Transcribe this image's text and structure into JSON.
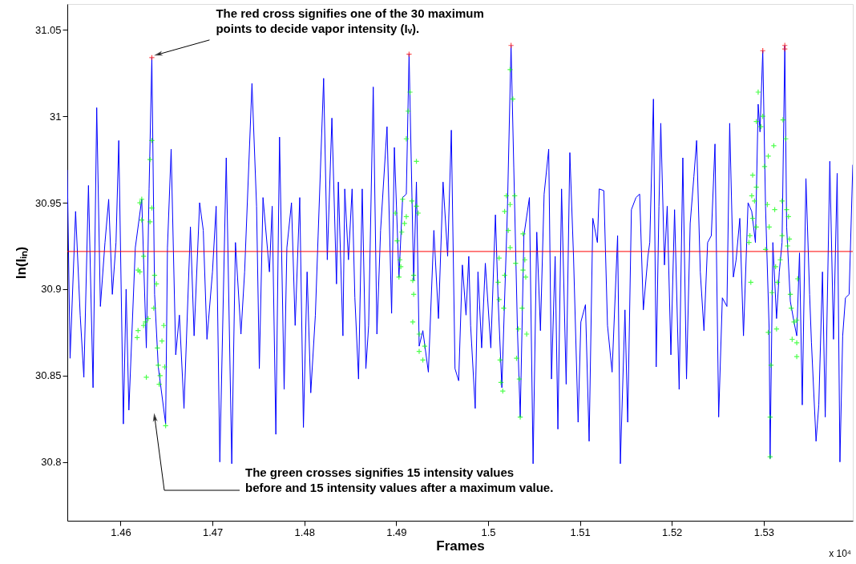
{
  "chart_data": {
    "type": "line",
    "xlabel": "Frames",
    "ylabel": "ln(Iᵢₙ)",
    "xlim": [
      1.4542,
      1.5397
    ],
    "ylim": [
      30.766,
      31.065
    ],
    "xticks": [
      1.46,
      1.47,
      1.48,
      1.49,
      1.5,
      1.51,
      1.52,
      1.53
    ],
    "yticks": [
      30.8,
      30.85,
      30.9,
      30.95,
      31,
      31.05
    ],
    "grid": false,
    "series": [
      {
        "type": "line",
        "color": "#0000ff",
        "marker": "none",
        "line_style": "solid",
        "x": [
          1.4542,
          1.4545,
          1.4551,
          1.4556,
          1.456,
          1.4565,
          1.457,
          1.4574,
          1.4578,
          1.4583,
          1.4587,
          1.4591,
          1.4595,
          1.4598,
          1.4603,
          1.4606,
          1.4609,
          1.4616,
          1.4623,
          1.4628,
          1.4631,
          1.4634,
          1.4637,
          1.4641,
          1.4649,
          1.4651,
          1.4655,
          1.466,
          1.4664,
          1.4669,
          1.4676,
          1.468,
          1.4686,
          1.469,
          1.4694,
          1.47,
          1.4704,
          1.4708,
          1.4715,
          1.4721,
          1.4725,
          1.4731,
          1.4735,
          1.4743,
          1.4748,
          1.4751,
          1.4755,
          1.4762,
          1.4765,
          1.4769,
          1.4773,
          1.4778,
          1.4781,
          1.4786,
          1.479,
          1.4795,
          1.4799,
          1.4803,
          1.4807,
          1.4812,
          1.4815,
          1.4821,
          1.4825,
          1.483,
          1.4835,
          1.4837,
          1.4842,
          1.4844,
          1.4848,
          1.4852,
          1.4855,
          1.4859,
          1.4863,
          1.4867,
          1.487,
          1.4875,
          1.4879,
          1.4883,
          1.489,
          1.4895,
          1.4898,
          1.4903,
          1.4907,
          1.4911,
          1.4914,
          1.4919,
          1.4922,
          1.4925,
          1.4929,
          1.4935,
          1.4941,
          1.4946,
          1.4951,
          1.4956,
          1.496,
          1.4964,
          1.4968,
          1.4972,
          1.4976,
          1.4979,
          1.4981,
          1.4986,
          1.4989,
          1.4993,
          1.4997,
          1.5003,
          1.5008,
          1.5011,
          1.5015,
          1.5021,
          1.5025,
          1.5028,
          1.5032,
          1.5035,
          1.5039,
          1.5045,
          1.5049,
          1.5053,
          1.5057,
          1.5061,
          1.5066,
          1.5069,
          1.5073,
          1.5076,
          1.508,
          1.5085,
          1.5089,
          1.5093,
          1.5098,
          1.5101,
          1.5106,
          1.511,
          1.5114,
          1.5119,
          1.5121,
          1.5126,
          1.513,
          1.5135,
          1.5141,
          1.5144,
          1.5149,
          1.5152,
          1.5156,
          1.5161,
          1.5165,
          1.5169,
          1.5174,
          1.5176,
          1.518,
          1.5183,
          1.5186,
          1.5188,
          1.5192,
          1.5195,
          1.5199,
          1.5203,
          1.5208,
          1.5212,
          1.5216,
          1.522,
          1.5224,
          1.5227,
          1.5231,
          1.5235,
          1.5239,
          1.5243,
          1.5247,
          1.5251,
          1.5255,
          1.526,
          1.5263,
          1.5267,
          1.527,
          1.5274,
          1.5278,
          1.5283,
          1.5287,
          1.5291,
          1.5294,
          1.5296,
          1.5299,
          1.5302,
          1.5306,
          1.5307,
          1.531,
          1.5314,
          1.5317,
          1.532,
          1.5323,
          1.5325,
          1.5329,
          1.5333,
          1.5336,
          1.5339,
          1.5342,
          1.5346,
          1.535,
          1.5352,
          1.5357,
          1.536,
          1.5364,
          1.5367,
          1.5372,
          1.5376,
          1.538,
          1.5383,
          1.5386,
          1.5389,
          1.5393,
          1.5397
        ],
        "values": [
          30.969,
          30.86,
          30.945,
          30.885,
          30.849,
          30.96,
          30.843,
          31.005,
          30.89,
          30.927,
          30.952,
          30.897,
          30.927,
          30.986,
          30.822,
          30.9,
          30.83,
          30.924,
          30.952,
          30.866,
          30.958,
          31.034,
          30.897,
          30.855,
          30.822,
          30.924,
          30.981,
          30.862,
          30.885,
          30.831,
          30.936,
          30.873,
          30.95,
          30.934,
          30.871,
          30.91,
          30.948,
          30.8,
          30.976,
          30.799,
          30.927,
          30.874,
          30.91,
          31.019,
          30.948,
          30.854,
          30.953,
          30.91,
          30.948,
          30.816,
          30.988,
          30.842,
          30.924,
          30.95,
          30.879,
          30.953,
          30.82,
          30.91,
          30.84,
          30.885,
          30.931,
          31.022,
          30.917,
          30.999,
          30.903,
          30.962,
          30.873,
          30.958,
          30.917,
          30.958,
          30.895,
          30.848,
          30.958,
          30.854,
          30.879,
          31.017,
          30.874,
          30.934,
          30.994,
          30.886,
          30.982,
          30.907,
          30.953,
          30.955,
          31.036,
          30.905,
          30.962,
          30.867,
          30.876,
          30.852,
          30.934,
          30.883,
          30.962,
          30.919,
          30.992,
          30.854,
          30.847,
          30.914,
          30.885,
          30.919,
          30.879,
          30.831,
          30.91,
          30.866,
          30.915,
          30.866,
          30.943,
          30.893,
          30.843,
          30.945,
          31.041,
          30.97,
          30.876,
          30.826,
          30.931,
          30.953,
          30.799,
          30.933,
          30.876,
          30.955,
          30.981,
          30.848,
          30.919,
          30.819,
          30.958,
          30.845,
          30.979,
          30.919,
          30.823,
          30.881,
          30.891,
          30.812,
          30.941,
          30.927,
          30.958,
          30.957,
          30.879,
          30.852,
          30.931,
          30.799,
          30.888,
          30.823,
          30.946,
          30.953,
          30.955,
          30.888,
          30.919,
          30.927,
          31.01,
          30.855,
          30.948,
          30.996,
          30.914,
          30.948,
          30.862,
          30.946,
          30.842,
          30.976,
          30.848,
          30.938,
          30.965,
          30.986,
          30.91,
          30.876,
          30.927,
          30.931,
          30.984,
          30.826,
          30.895,
          30.89,
          30.996,
          30.907,
          30.917,
          30.941,
          30.873,
          30.95,
          30.945,
          30.927,
          31.007,
          30.991,
          31.038,
          30.948,
          30.876,
          30.802,
          30.927,
          30.883,
          30.91,
          30.927,
          31.041,
          30.936,
          30.893,
          30.881,
          30.873,
          30.921,
          30.833,
          30.964,
          30.897,
          30.869,
          30.812,
          30.833,
          30.91,
          30.826,
          30.974,
          30.871,
          30.967,
          30.8,
          30.873,
          30.895,
          30.897,
          30.972
        ]
      },
      {
        "type": "scatter",
        "color": "#00ff00",
        "marker": "cross",
        "x": [
          1.4634,
          1.4632,
          1.4623,
          1.4621,
          1.4634,
          1.4623,
          1.4632,
          1.4625,
          1.4619,
          1.4621,
          1.4637,
          1.4639,
          1.4636,
          1.463,
          1.4627,
          1.4625,
          1.4619,
          1.4618,
          1.4647,
          1.4645,
          1.464,
          1.4641,
          1.4648,
          1.4643,
          1.4642,
          1.4628,
          1.4649,
          1.4915,
          1.4913,
          1.4911,
          1.4922,
          1.4907,
          1.4917,
          1.4922,
          1.4899,
          1.4924,
          1.4911,
          1.4909,
          1.4906,
          1.4901,
          1.4904,
          1.4905,
          1.4903,
          1.4919,
          1.4918,
          1.4919,
          1.4918,
          1.4925,
          1.4931,
          1.4925,
          1.4929,
          1.5024,
          1.5027,
          1.502,
          1.5029,
          1.5024,
          1.5018,
          1.5022,
          1.5024,
          1.5038,
          1.5012,
          1.504,
          1.503,
          1.5018,
          1.5011,
          1.5038,
          1.5041,
          1.5012,
          1.5017,
          1.5037,
          1.5033,
          1.5042,
          1.5013,
          1.5031,
          1.5034,
          1.5014,
          1.5016,
          1.5035,
          1.5294,
          1.5299,
          1.5292,
          1.5297,
          1.5311,
          1.5305,
          1.5301,
          1.5288,
          1.5292,
          1.5287,
          1.529,
          1.5321,
          1.5324,
          1.5304,
          1.532,
          1.5312,
          1.5325,
          1.5327,
          1.5288,
          1.5292,
          1.5285,
          1.5284,
          1.5306,
          1.532,
          1.5328,
          1.5326,
          1.5302,
          1.5318,
          1.5313,
          1.5315,
          1.5286,
          1.5337,
          1.5309,
          1.5329,
          1.533,
          1.5333,
          1.5336,
          1.5331,
          1.5336,
          1.5336,
          1.5305,
          1.5314,
          1.5308,
          1.5307,
          1.5307
        ],
        "values": [
          30.986,
          30.975,
          30.952,
          30.95,
          30.947,
          30.94,
          30.939,
          30.919,
          30.911,
          30.91,
          30.908,
          30.903,
          30.889,
          30.883,
          30.881,
          30.879,
          30.876,
          30.872,
          30.879,
          30.87,
          30.866,
          30.856,
          30.855,
          30.85,
          30.845,
          30.849,
          30.821,
          31.014,
          31.003,
          30.987,
          30.974,
          30.952,
          30.951,
          30.948,
          30.944,
          30.944,
          30.942,
          30.938,
          30.933,
          30.928,
          30.917,
          30.913,
          30.907,
          30.908,
          30.905,
          30.897,
          30.881,
          30.874,
          30.867,
          30.864,
          30.859,
          31.027,
          31.01,
          30.954,
          30.954,
          30.949,
          30.945,
          30.934,
          30.924,
          30.932,
          30.918,
          30.917,
          30.915,
          30.908,
          30.904,
          30.911,
          30.907,
          30.894,
          30.889,
          30.889,
          30.877,
          30.874,
          30.859,
          30.86,
          30.848,
          30.846,
          30.841,
          30.826,
          31.014,
          31.0,
          30.997,
          30.994,
          30.983,
          30.977,
          30.971,
          30.966,
          30.959,
          30.954,
          30.951,
          30.998,
          30.987,
          30.949,
          30.951,
          30.946,
          30.946,
          30.942,
          30.941,
          30.936,
          30.931,
          30.927,
          30.936,
          30.931,
          30.929,
          30.925,
          30.923,
          30.917,
          30.913,
          30.904,
          30.904,
          30.906,
          30.898,
          30.897,
          30.889,
          30.881,
          30.882,
          30.871,
          30.869,
          30.861,
          30.875,
          30.877,
          30.856,
          30.826,
          30.803
        ]
      },
      {
        "type": "scatter",
        "color": "#ff0000",
        "marker": "cross",
        "x": [
          1.4634,
          1.4914,
          1.5025,
          1.5299,
          1.5323,
          1.5323
        ],
        "values": [
          31.034,
          31.036,
          31.041,
          31.038,
          31.041,
          31.039
        ]
      }
    ],
    "ref_lines": [
      {
        "axis": "y",
        "value": 30.9218,
        "color": "#ff0000",
        "line_style": "solid"
      }
    ],
    "annotations": [
      {
        "text": "The red cross signifies one of the 30 maximum\npoints to decide vapor intensity (Iᵥ).",
        "x": 1.4634,
        "y": 31.034
      },
      "The green crosses signifies 15 intensity values\nbefore and 15 intensity values after a maximum value.",
      "x 10⁴"
    ]
  }
}
